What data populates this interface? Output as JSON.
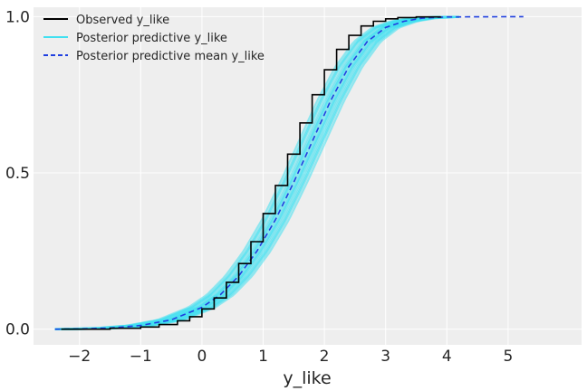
{
  "chart_data": {
    "type": "line",
    "title": "",
    "xlabel": "y_like",
    "ylabel": "",
    "xlim": [
      -2.75,
      6.2
    ],
    "ylim": [
      -0.05,
      1.03
    ],
    "xticks": [
      -2,
      -1,
      0,
      1,
      2,
      3,
      4,
      5
    ],
    "yticks": [
      0.0,
      0.5,
      1.0
    ],
    "xtick_labels": [
      "−2",
      "−1",
      "0",
      "1",
      "2",
      "3",
      "4",
      "5"
    ],
    "ytick_labels": [
      "0.0",
      "0.5",
      "1.0"
    ],
    "grid": true,
    "legend_position": "top-left",
    "legend": [
      {
        "label": "Observed y_like",
        "color": "#000000",
        "style": "solid"
      },
      {
        "label": "Posterior predictive y_like",
        "color": "#40e0f0",
        "style": "solid"
      },
      {
        "label": "Posterior predictive mean y_like",
        "color": "#1f3fe0",
        "style": "dashed"
      }
    ],
    "series": [
      {
        "name": "Observed y_like",
        "color": "#000000",
        "style": "step",
        "x": [
          -2.3,
          -1.5,
          -1.0,
          -0.7,
          -0.4,
          -0.2,
          0.0,
          0.2,
          0.4,
          0.6,
          0.8,
          1.0,
          1.2,
          1.4,
          1.6,
          1.8,
          2.0,
          2.2,
          2.4,
          2.6,
          2.8,
          3.0,
          3.2,
          3.5,
          3.9
        ],
        "y": [
          0.0,
          0.003,
          0.007,
          0.015,
          0.027,
          0.04,
          0.065,
          0.1,
          0.15,
          0.21,
          0.28,
          0.37,
          0.46,
          0.56,
          0.66,
          0.75,
          0.83,
          0.895,
          0.94,
          0.97,
          0.985,
          0.993,
          0.997,
          0.999,
          1.0
        ]
      },
      {
        "name": "Posterior predictive mean y_like",
        "color": "#1f3fe0",
        "style": "dashed",
        "x": [
          -2.4,
          -2.0,
          -1.5,
          -1.0,
          -0.5,
          0.0,
          0.3,
          0.6,
          0.9,
          1.2,
          1.5,
          1.8,
          2.1,
          2.4,
          2.7,
          3.0,
          3.3,
          3.6,
          4.0,
          5.25
        ],
        "y": [
          0.0,
          0.001,
          0.004,
          0.012,
          0.03,
          0.07,
          0.11,
          0.17,
          0.25,
          0.35,
          0.47,
          0.6,
          0.73,
          0.84,
          0.92,
          0.965,
          0.985,
          0.995,
          0.999,
          1.0
        ]
      }
    ]
  }
}
